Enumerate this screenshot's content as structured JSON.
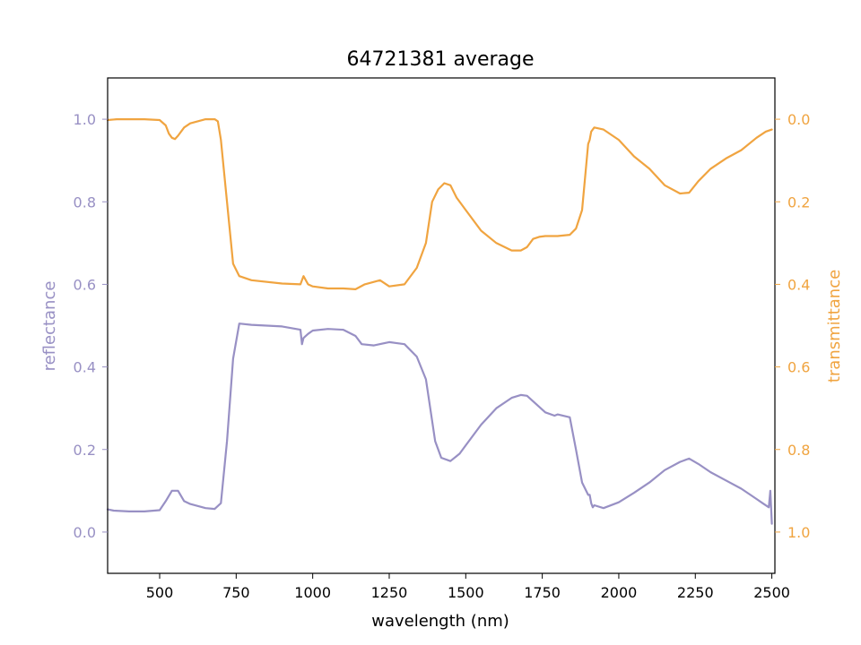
{
  "chart_data": {
    "type": "line",
    "title": "64721381 average",
    "xlabel": "wavelength (nm)",
    "ylabel_left": "reflectance",
    "ylabel_right": "transmittance",
    "xlim": [
      330,
      2510
    ],
    "ylim_left": [
      -0.1,
      1.1
    ],
    "ylim_right": [
      1.1,
      -0.1
    ],
    "right_axis_inverted": true,
    "grid": false,
    "x_ticks": [
      {
        "value": 500,
        "label": "500"
      },
      {
        "value": 750,
        "label": "750"
      },
      {
        "value": 1000,
        "label": "1000"
      },
      {
        "value": 1250,
        "label": "1250"
      },
      {
        "value": 1500,
        "label": "1500"
      },
      {
        "value": 1750,
        "label": "1750"
      },
      {
        "value": 2000,
        "label": "2000"
      },
      {
        "value": 2250,
        "label": "2250"
      },
      {
        "value": 2500,
        "label": "2500"
      }
    ],
    "y_ticks_left": [
      {
        "value": 0.0,
        "label": "0.0"
      },
      {
        "value": 0.2,
        "label": "0.2"
      },
      {
        "value": 0.4,
        "label": "0.4"
      },
      {
        "value": 0.6,
        "label": "0.6"
      },
      {
        "value": 0.8,
        "label": "0.8"
      },
      {
        "value": 1.0,
        "label": "1.0"
      }
    ],
    "y_ticks_right": [
      {
        "value": 0.0,
        "label": "0.0"
      },
      {
        "value": 0.2,
        "label": "0.2"
      },
      {
        "value": 0.4,
        "label": "0.4"
      },
      {
        "value": 0.6,
        "label": "0.6"
      },
      {
        "value": 0.8,
        "label": "0.8"
      },
      {
        "value": 1.0,
        "label": "1.0"
      }
    ],
    "colors": {
      "reflectance": "#9890c4",
      "transmittance": "#f0a440"
    },
    "series": [
      {
        "axis": "left",
        "color": "#9890c4",
        "x": [
          330,
          350,
          400,
          450,
          500,
          520,
          540,
          560,
          580,
          600,
          650,
          680,
          700,
          720,
          740,
          760,
          800,
          900,
          960,
          965,
          970,
          985,
          1000,
          1050,
          1100,
          1140,
          1160,
          1200,
          1250,
          1300,
          1340,
          1370,
          1400,
          1420,
          1450,
          1480,
          1500,
          1550,
          1600,
          1650,
          1680,
          1700,
          1730,
          1760,
          1790,
          1800,
          1840,
          1860,
          1880,
          1900,
          1905,
          1910,
          1915,
          1920,
          1950,
          2000,
          2050,
          2100,
          2150,
          2200,
          2230,
          2260,
          2300,
          2350,
          2400,
          2430,
          2450,
          2470,
          2490,
          2495,
          2500
        ],
        "y": [
          0.055,
          0.052,
          0.05,
          0.05,
          0.053,
          0.075,
          0.1,
          0.1,
          0.075,
          0.068,
          0.058,
          0.056,
          0.07,
          0.22,
          0.42,
          0.505,
          0.502,
          0.498,
          0.49,
          0.455,
          0.47,
          0.48,
          0.488,
          0.492,
          0.49,
          0.475,
          0.455,
          0.452,
          0.46,
          0.455,
          0.425,
          0.37,
          0.22,
          0.18,
          0.172,
          0.19,
          0.21,
          0.26,
          0.3,
          0.325,
          0.332,
          0.33,
          0.31,
          0.29,
          0.282,
          0.285,
          0.278,
          0.2,
          0.12,
          0.09,
          0.09,
          0.07,
          0.06,
          0.065,
          0.058,
          0.072,
          0.095,
          0.12,
          0.15,
          0.17,
          0.178,
          0.165,
          0.145,
          0.125,
          0.105,
          0.09,
          0.08,
          0.07,
          0.06,
          0.1,
          0.02
        ]
      },
      {
        "axis": "right",
        "color": "#f0a440",
        "x": [
          330,
          360,
          400,
          450,
          500,
          520,
          530,
          540,
          550,
          560,
          580,
          600,
          650,
          680,
          690,
          700,
          720,
          740,
          760,
          800,
          900,
          960,
          965,
          970,
          985,
          1000,
          1050,
          1100,
          1140,
          1170,
          1220,
          1250,
          1300,
          1340,
          1370,
          1390,
          1410,
          1430,
          1450,
          1470,
          1500,
          1550,
          1600,
          1650,
          1680,
          1700,
          1720,
          1740,
          1760,
          1800,
          1840,
          1860,
          1880,
          1895,
          1900,
          1905,
          1910,
          1920,
          1950,
          2000,
          2050,
          2100,
          2150,
          2200,
          2230,
          2260,
          2300,
          2350,
          2400,
          2450,
          2480,
          2500
        ],
        "y": [
          0.002,
          0.0,
          0.0,
          0.0,
          0.002,
          0.015,
          0.035,
          0.045,
          0.048,
          0.04,
          0.02,
          0.01,
          0.0,
          0.0,
          0.005,
          0.05,
          0.2,
          0.35,
          0.38,
          0.39,
          0.398,
          0.4,
          0.39,
          0.38,
          0.4,
          0.405,
          0.41,
          0.41,
          0.412,
          0.4,
          0.39,
          0.405,
          0.4,
          0.36,
          0.3,
          0.2,
          0.17,
          0.155,
          0.16,
          0.19,
          0.22,
          0.27,
          0.3,
          0.318,
          0.318,
          0.31,
          0.29,
          0.285,
          0.283,
          0.283,
          0.28,
          0.265,
          0.22,
          0.1,
          0.06,
          0.05,
          0.03,
          0.02,
          0.025,
          0.05,
          0.09,
          0.12,
          0.16,
          0.18,
          0.178,
          0.15,
          0.12,
          0.095,
          0.075,
          0.045,
          0.03,
          0.025
        ]
      }
    ]
  }
}
